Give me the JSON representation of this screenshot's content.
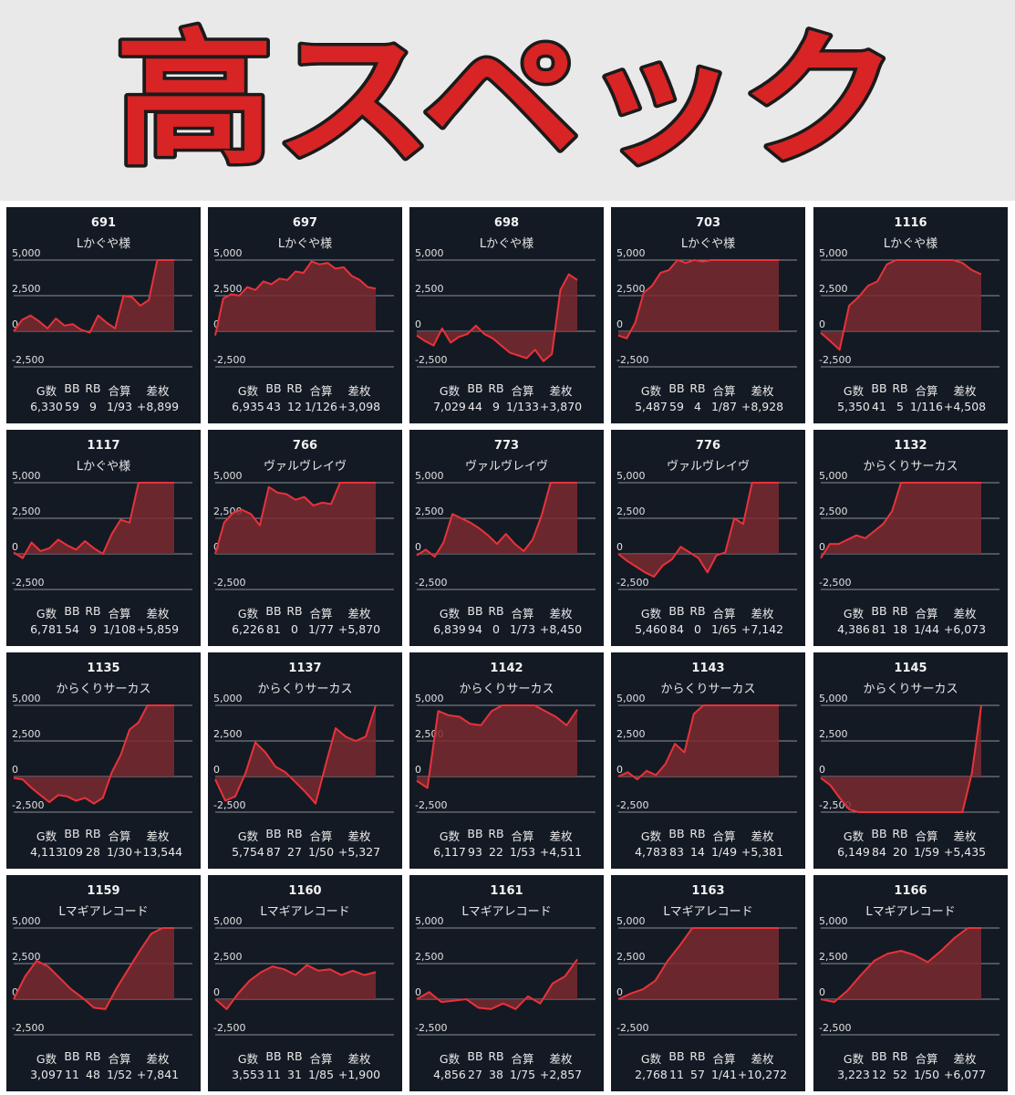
{
  "banner": {
    "title": "高スペック"
  },
  "table_headers": [
    "G数",
    "BB",
    "RB",
    "合算",
    "差枚"
  ],
  "chart_data": [
    {
      "type": "area",
      "title": "691",
      "subtitle": "Lかぐや様",
      "ylim": [
        -2500,
        5000
      ],
      "yticks": [
        "5,000",
        "2,500",
        "0",
        "-2,500"
      ],
      "values": [
        0,
        800,
        1100,
        700,
        200,
        900,
        400,
        500,
        100,
        -100,
        1100,
        600,
        200,
        2500,
        2400,
        1800,
        2200,
        5000,
        5000,
        5000
      ],
      "stats": {
        "games": "6,330",
        "bb": "59",
        "rb": "9",
        "combined": "1/93",
        "diff": "+8,899"
      }
    },
    {
      "type": "area",
      "title": "697",
      "subtitle": "Lかぐや様",
      "ylim": [
        -2500,
        5000
      ],
      "yticks": [
        "5,000",
        "2,500",
        "0",
        "-2,500"
      ],
      "values": [
        -300,
        2300,
        2600,
        2500,
        3100,
        2900,
        3500,
        3300,
        3700,
        3600,
        4200,
        4100,
        4900,
        4700,
        4800,
        4400,
        4500,
        3900,
        3600,
        3100,
        3000
      ],
      "stats": {
        "games": "6,935",
        "bb": "43",
        "rb": "12",
        "combined": "1/126",
        "diff": "+3,098"
      }
    },
    {
      "type": "area",
      "title": "698",
      "subtitle": "Lかぐや様",
      "ylim": [
        -2500,
        5000
      ],
      "yticks": [
        "5,000",
        "2,500",
        "0",
        "-2,500"
      ],
      "values": [
        -300,
        -700,
        -1000,
        200,
        -800,
        -400,
        -200,
        400,
        -200,
        -500,
        -1000,
        -1500,
        -1700,
        -1900,
        -1300,
        -2100,
        -1600,
        2900,
        4000,
        3600
      ],
      "stats": {
        "games": "7,029",
        "bb": "44",
        "rb": "9",
        "combined": "1/133",
        "diff": "+3,870"
      }
    },
    {
      "type": "area",
      "title": "703",
      "subtitle": "Lかぐや様",
      "ylim": [
        -2500,
        5000
      ],
      "yticks": [
        "5,000",
        "2,500",
        "0",
        "-2,500"
      ],
      "values": [
        -300,
        -500,
        600,
        2700,
        3200,
        4100,
        4300,
        5000,
        4800,
        5000,
        4900,
        5000,
        5000,
        5000,
        5000,
        5000,
        5000,
        5000,
        5000,
        5000
      ],
      "stats": {
        "games": "5,487",
        "bb": "59",
        "rb": "4",
        "combined": "1/87",
        "diff": "+8,928"
      }
    },
    {
      "type": "area",
      "title": "1116",
      "subtitle": "Lかぐや様",
      "ylim": [
        -2500,
        5000
      ],
      "yticks": [
        "5,000",
        "2,500",
        "0",
        "-2,500"
      ],
      "values": [
        -100,
        -700,
        -1300,
        1800,
        2400,
        3200,
        3500,
        4700,
        5000,
        5000,
        5000,
        5000,
        5000,
        5000,
        5000,
        4800,
        4300,
        4000
      ],
      "stats": {
        "games": "5,350",
        "bb": "41",
        "rb": "5",
        "combined": "1/116",
        "diff": "+4,508"
      }
    },
    {
      "type": "area",
      "title": "1117",
      "subtitle": "Lかぐや様",
      "ylim": [
        -2500,
        5000
      ],
      "yticks": [
        "5,000",
        "2,500",
        "0",
        "-2,500"
      ],
      "values": [
        100,
        -300,
        800,
        200,
        400,
        1000,
        600,
        300,
        900,
        400,
        0,
        1400,
        2400,
        2200,
        5000,
        5000,
        5000,
        5000,
        5000
      ],
      "stats": {
        "games": "6,781",
        "bb": "54",
        "rb": "9",
        "combined": "1/108",
        "diff": "+5,859"
      }
    },
    {
      "type": "area",
      "title": "766",
      "subtitle": "ヴァルヴレイヴ",
      "ylim": [
        -2500,
        5000
      ],
      "yticks": [
        "5,000",
        "2,500",
        "0",
        "-2,500"
      ],
      "values": [
        0,
        2200,
        2900,
        3100,
        2800,
        2000,
        4700,
        4300,
        4200,
        3800,
        4000,
        3400,
        3600,
        3500,
        5000,
        5000,
        5000,
        5000,
        5000
      ],
      "stats": {
        "games": "6,226",
        "bb": "81",
        "rb": "0",
        "combined": "1/77",
        "diff": "+5,870"
      }
    },
    {
      "type": "area",
      "title": "773",
      "subtitle": "ヴァルヴレイヴ",
      "ylim": [
        -2500,
        5000
      ],
      "yticks": [
        "5,000",
        "2,500",
        "0",
        "-2,500"
      ],
      "values": [
        -100,
        300,
        -200,
        800,
        2800,
        2500,
        2200,
        1800,
        1300,
        700,
        1400,
        700,
        200,
        1000,
        2700,
        5000,
        5000,
        5000,
        5000
      ],
      "stats": {
        "games": "6,839",
        "bb": "94",
        "rb": "0",
        "combined": "1/73",
        "diff": "+8,450"
      }
    },
    {
      "type": "area",
      "title": "776",
      "subtitle": "ヴァルヴレイヴ",
      "ylim": [
        -2500,
        5000
      ],
      "yticks": [
        "5,000",
        "2,500",
        "0",
        "-2,500"
      ],
      "values": [
        0,
        -500,
        -900,
        -1300,
        -1600,
        -800,
        -400,
        500,
        100,
        -300,
        -1300,
        -100,
        100,
        2500,
        2100,
        5000,
        5000,
        5000,
        5000
      ],
      "stats": {
        "games": "5,460",
        "bb": "84",
        "rb": "0",
        "combined": "1/65",
        "diff": "+7,142"
      }
    },
    {
      "type": "area",
      "title": "1132",
      "subtitle": "からくりサーカス",
      "ylim": [
        -2500,
        5000
      ],
      "yticks": [
        "5,000",
        "2,500",
        "0",
        "-2,500"
      ],
      "values": [
        -300,
        700,
        700,
        1000,
        1300,
        1100,
        1600,
        2100,
        3000,
        5000,
        5000,
        5000,
        5000,
        5000,
        5000,
        5000,
        5000,
        5000,
        5000
      ],
      "stats": {
        "games": "4,386",
        "bb": "81",
        "rb": "18",
        "combined": "1/44",
        "diff": "+6,073"
      }
    },
    {
      "type": "area",
      "title": "1135",
      "subtitle": "からくりサーカス",
      "ylim": [
        -2500,
        5000
      ],
      "yticks": [
        "5,000",
        "2,500",
        "0",
        "-2,500"
      ],
      "values": [
        -100,
        -200,
        -800,
        -1300,
        -1800,
        -1300,
        -1400,
        -1700,
        -1500,
        -1900,
        -1500,
        300,
        1500,
        3300,
        3800,
        5000,
        5000,
        5000,
        5000
      ],
      "stats": {
        "games": "4,113",
        "bb": "109",
        "rb": "28",
        "combined": "1/30",
        "diff": "+13,544"
      }
    },
    {
      "type": "area",
      "title": "1137",
      "subtitle": "からくりサーカス",
      "ylim": [
        -2500,
        5000
      ],
      "yticks": [
        "5,000",
        "2,500",
        "0",
        "-2,500"
      ],
      "values": [
        -200,
        -1700,
        -1400,
        200,
        2400,
        1700,
        700,
        300,
        -400,
        -1100,
        -1900,
        800,
        3400,
        2800,
        2500,
        2800,
        5000
      ],
      "stats": {
        "games": "5,754",
        "bb": "87",
        "rb": "27",
        "combined": "1/50",
        "diff": "+5,327"
      }
    },
    {
      "type": "area",
      "title": "1142",
      "subtitle": "からくりサーカス",
      "ylim": [
        -2500,
        5000
      ],
      "yticks": [
        "5,000",
        "2,500",
        "0",
        "-2,500"
      ],
      "values": [
        -300,
        -800,
        4600,
        4300,
        4200,
        3700,
        3600,
        4600,
        5000,
        5000,
        5000,
        5000,
        4600,
        4200,
        3600,
        4700
      ],
      "stats": {
        "games": "6,117",
        "bb": "93",
        "rb": "22",
        "combined": "1/53",
        "diff": "+4,511"
      }
    },
    {
      "type": "area",
      "title": "1143",
      "subtitle": "からくりサーカス",
      "ylim": [
        -2500,
        5000
      ],
      "yticks": [
        "5,000",
        "2,500",
        "0",
        "-2,500"
      ],
      "values": [
        0,
        300,
        -200,
        400,
        100,
        900,
        2300,
        1700,
        4400,
        5000,
        5000,
        5000,
        5000,
        5000,
        5000,
        5000,
        5000,
        5000
      ],
      "stats": {
        "games": "4,783",
        "bb": "83",
        "rb": "14",
        "combined": "1/49",
        "diff": "+5,381"
      }
    },
    {
      "type": "area",
      "title": "1145",
      "subtitle": "からくりサーカス",
      "ylim": [
        -2500,
        5000
      ],
      "yticks": [
        "5,000",
        "2,500",
        "0",
        "-2,500"
      ],
      "values": [
        -100,
        -600,
        -1500,
        -2300,
        -2500,
        -2500,
        -2500,
        -2500,
        -2500,
        -2500,
        -2500,
        -2500,
        -2500,
        -2500,
        -2500,
        -2500,
        200,
        5000
      ],
      "stats": {
        "games": "6,149",
        "bb": "84",
        "rb": "20",
        "combined": "1/59",
        "diff": "+5,435"
      }
    },
    {
      "type": "area",
      "title": "1159",
      "subtitle": "Lマギアレコード",
      "ylim": [
        -2500,
        5000
      ],
      "yticks": [
        "5,000",
        "2,500",
        "0",
        "-2,500"
      ],
      "values": [
        0,
        1600,
        2700,
        2300,
        1500,
        700,
        100,
        -600,
        -700,
        800,
        2100,
        3400,
        4600,
        5000,
        5000
      ],
      "stats": {
        "games": "3,097",
        "bb": "11",
        "rb": "48",
        "combined": "1/52",
        "diff": "+7,841"
      }
    },
    {
      "type": "area",
      "title": "1160",
      "subtitle": "Lマギアレコード",
      "ylim": [
        -2500,
        5000
      ],
      "yticks": [
        "5,000",
        "2,500",
        "0",
        "-2,500"
      ],
      "values": [
        0,
        -700,
        400,
        1300,
        1900,
        2300,
        2100,
        1700,
        2400,
        2000,
        2100,
        1700,
        2000,
        1700,
        1900
      ],
      "stats": {
        "games": "3,553",
        "bb": "11",
        "rb": "31",
        "combined": "1/85",
        "diff": "+1,900"
      }
    },
    {
      "type": "area",
      "title": "1161",
      "subtitle": "Lマギアレコード",
      "ylim": [
        -2500,
        5000
      ],
      "yticks": [
        "5,000",
        "2,500",
        "0",
        "-2,500"
      ],
      "values": [
        0,
        500,
        -200,
        -100,
        0,
        -600,
        -700,
        -300,
        -700,
        200,
        -300,
        1100,
        1600,
        2800
      ],
      "stats": {
        "games": "4,856",
        "bb": "27",
        "rb": "38",
        "combined": "1/75",
        "diff": "+2,857"
      }
    },
    {
      "type": "area",
      "title": "1163",
      "subtitle": "Lマギアレコード",
      "ylim": [
        -2500,
        5000
      ],
      "yticks": [
        "5,000",
        "2,500",
        "0",
        "-2,500"
      ],
      "values": [
        0,
        400,
        700,
        1300,
        2700,
        3800,
        5000,
        5000,
        5000,
        5000,
        5000,
        5000,
        5000,
        5000
      ],
      "stats": {
        "games": "2,768",
        "bb": "11",
        "rb": "57",
        "combined": "1/41",
        "diff": "+10,272"
      }
    },
    {
      "type": "area",
      "title": "1166",
      "subtitle": "Lマギアレコード",
      "ylim": [
        -2500,
        5000
      ],
      "yticks": [
        "5,000",
        "2,500",
        "0",
        "-2,500"
      ],
      "values": [
        0,
        -200,
        600,
        1700,
        2700,
        3200,
        3400,
        3100,
        2600,
        3400,
        4300,
        5000,
        5000
      ],
      "stats": {
        "games": "3,223",
        "bb": "12",
        "rb": "52",
        "combined": "1/50",
        "diff": "+6,077"
      }
    }
  ],
  "colors": {
    "panel_bg": "#141a24",
    "line": "#e8323a",
    "fill": "#7a2a30",
    "grid": "#8a8f96",
    "banner_text": "#d82424"
  }
}
